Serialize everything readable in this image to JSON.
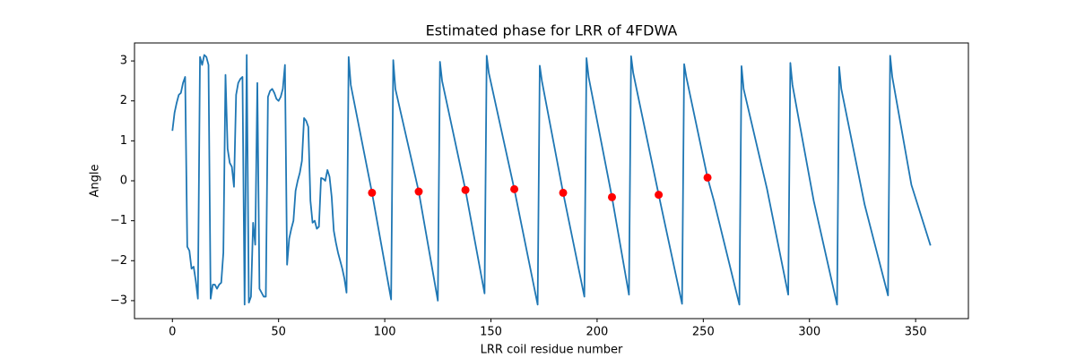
{
  "chart_data": {
    "type": "line",
    "title": "Estimated phase for LRR of 4FDWA",
    "xlabel": "LRR coil residue number",
    "ylabel": "Angle",
    "xlim": [
      -17.85,
      374.85
    ],
    "ylim": [
      -3.45,
      3.45
    ],
    "xticks": [
      0,
      50,
      100,
      150,
      200,
      250,
      300,
      350
    ],
    "yticks": [
      {
        "value": -3,
        "label": "−3"
      },
      {
        "value": -2,
        "label": "−2"
      },
      {
        "value": -1,
        "label": "−1"
      },
      0,
      1,
      2,
      3
    ],
    "series": [
      {
        "color": "#1f77b4",
        "marker": "none",
        "x": [
          0,
          1,
          2,
          3,
          4,
          5,
          6,
          7,
          8,
          9,
          10,
          11,
          12,
          13,
          14,
          15,
          16,
          17,
          18,
          19,
          20,
          21,
          22,
          23,
          24,
          25,
          26,
          27,
          28,
          29,
          30,
          31,
          32,
          33,
          34,
          35,
          36,
          37,
          38,
          39,
          40,
          41,
          42,
          43,
          44,
          45,
          46,
          47,
          48,
          49,
          50,
          51,
          52,
          53,
          54,
          55,
          56,
          57,
          58,
          59,
          60,
          61,
          62,
          63,
          64,
          65,
          66,
          67,
          68,
          69,
          70,
          71,
          72,
          73,
          74,
          75,
          76,
          77,
          78,
          79,
          80,
          81,
          82,
          83,
          84,
          94,
          103,
          104,
          105,
          116,
          125,
          126,
          127,
          138,
          147,
          148,
          149,
          161,
          172,
          173,
          174,
          184,
          194,
          195,
          196,
          207,
          215,
          216,
          217,
          229,
          240,
          241,
          242,
          252,
          255,
          267,
          268,
          269,
          280,
          290,
          291,
          292,
          302,
          313,
          314,
          315,
          326,
          337,
          338,
          339,
          348,
          357
        ],
        "values": [
          1.25,
          1.7,
          1.95,
          2.15,
          2.2,
          2.45,
          2.6,
          -1.65,
          -1.75,
          -2.2,
          -2.15,
          -2.5,
          -2.95,
          3.1,
          2.9,
          3.15,
          3.1,
          2.9,
          -2.95,
          -2.6,
          -2.6,
          -2.7,
          -2.6,
          -2.55,
          -1.8,
          2.65,
          0.8,
          0.45,
          0.35,
          -0.15,
          2.15,
          2.45,
          2.55,
          2.6,
          -3.1,
          3.15,
          -3.05,
          -2.9,
          -1.05,
          -1.6,
          2.45,
          -2.7,
          -2.8,
          -2.9,
          -2.9,
          2.1,
          2.25,
          2.3,
          2.2,
          2.05,
          2.0,
          2.1,
          2.3,
          2.9,
          -2.1,
          -1.45,
          -1.2,
          -1.0,
          -0.25,
          0.0,
          0.2,
          0.5,
          1.57,
          1.5,
          1.35,
          -0.5,
          -1.05,
          -1.0,
          -1.2,
          -1.15,
          0.07,
          0.05,
          0.0,
          0.27,
          0.1,
          -0.4,
          -1.25,
          -1.55,
          -1.8,
          -2.0,
          -2.2,
          -2.45,
          -2.8,
          3.1,
          2.4,
          -0.3,
          -2.97,
          3.02,
          2.3,
          -0.27,
          -3.0,
          2.98,
          2.5,
          -0.23,
          -2.82,
          3.13,
          2.7,
          -0.21,
          -3.1,
          2.88,
          2.5,
          -0.3,
          -2.9,
          3.07,
          2.6,
          -0.41,
          -2.85,
          3.12,
          2.7,
          -0.35,
          -3.08,
          2.92,
          2.6,
          0.08,
          -0.5,
          -3.1,
          2.87,
          2.3,
          -0.2,
          -2.85,
          2.95,
          2.4,
          -0.5,
          -3.1,
          2.85,
          2.3,
          -0.6,
          -2.87,
          3.13,
          2.6,
          -0.1,
          -1.62
        ]
      },
      {
        "color": "#ff0000",
        "marker": "circle",
        "x": [
          94,
          116,
          138,
          161,
          184,
          207,
          229,
          252
        ],
        "values": [
          -0.3,
          -0.27,
          -0.23,
          -0.21,
          -0.3,
          -0.41,
          -0.35,
          0.08
        ]
      }
    ]
  }
}
